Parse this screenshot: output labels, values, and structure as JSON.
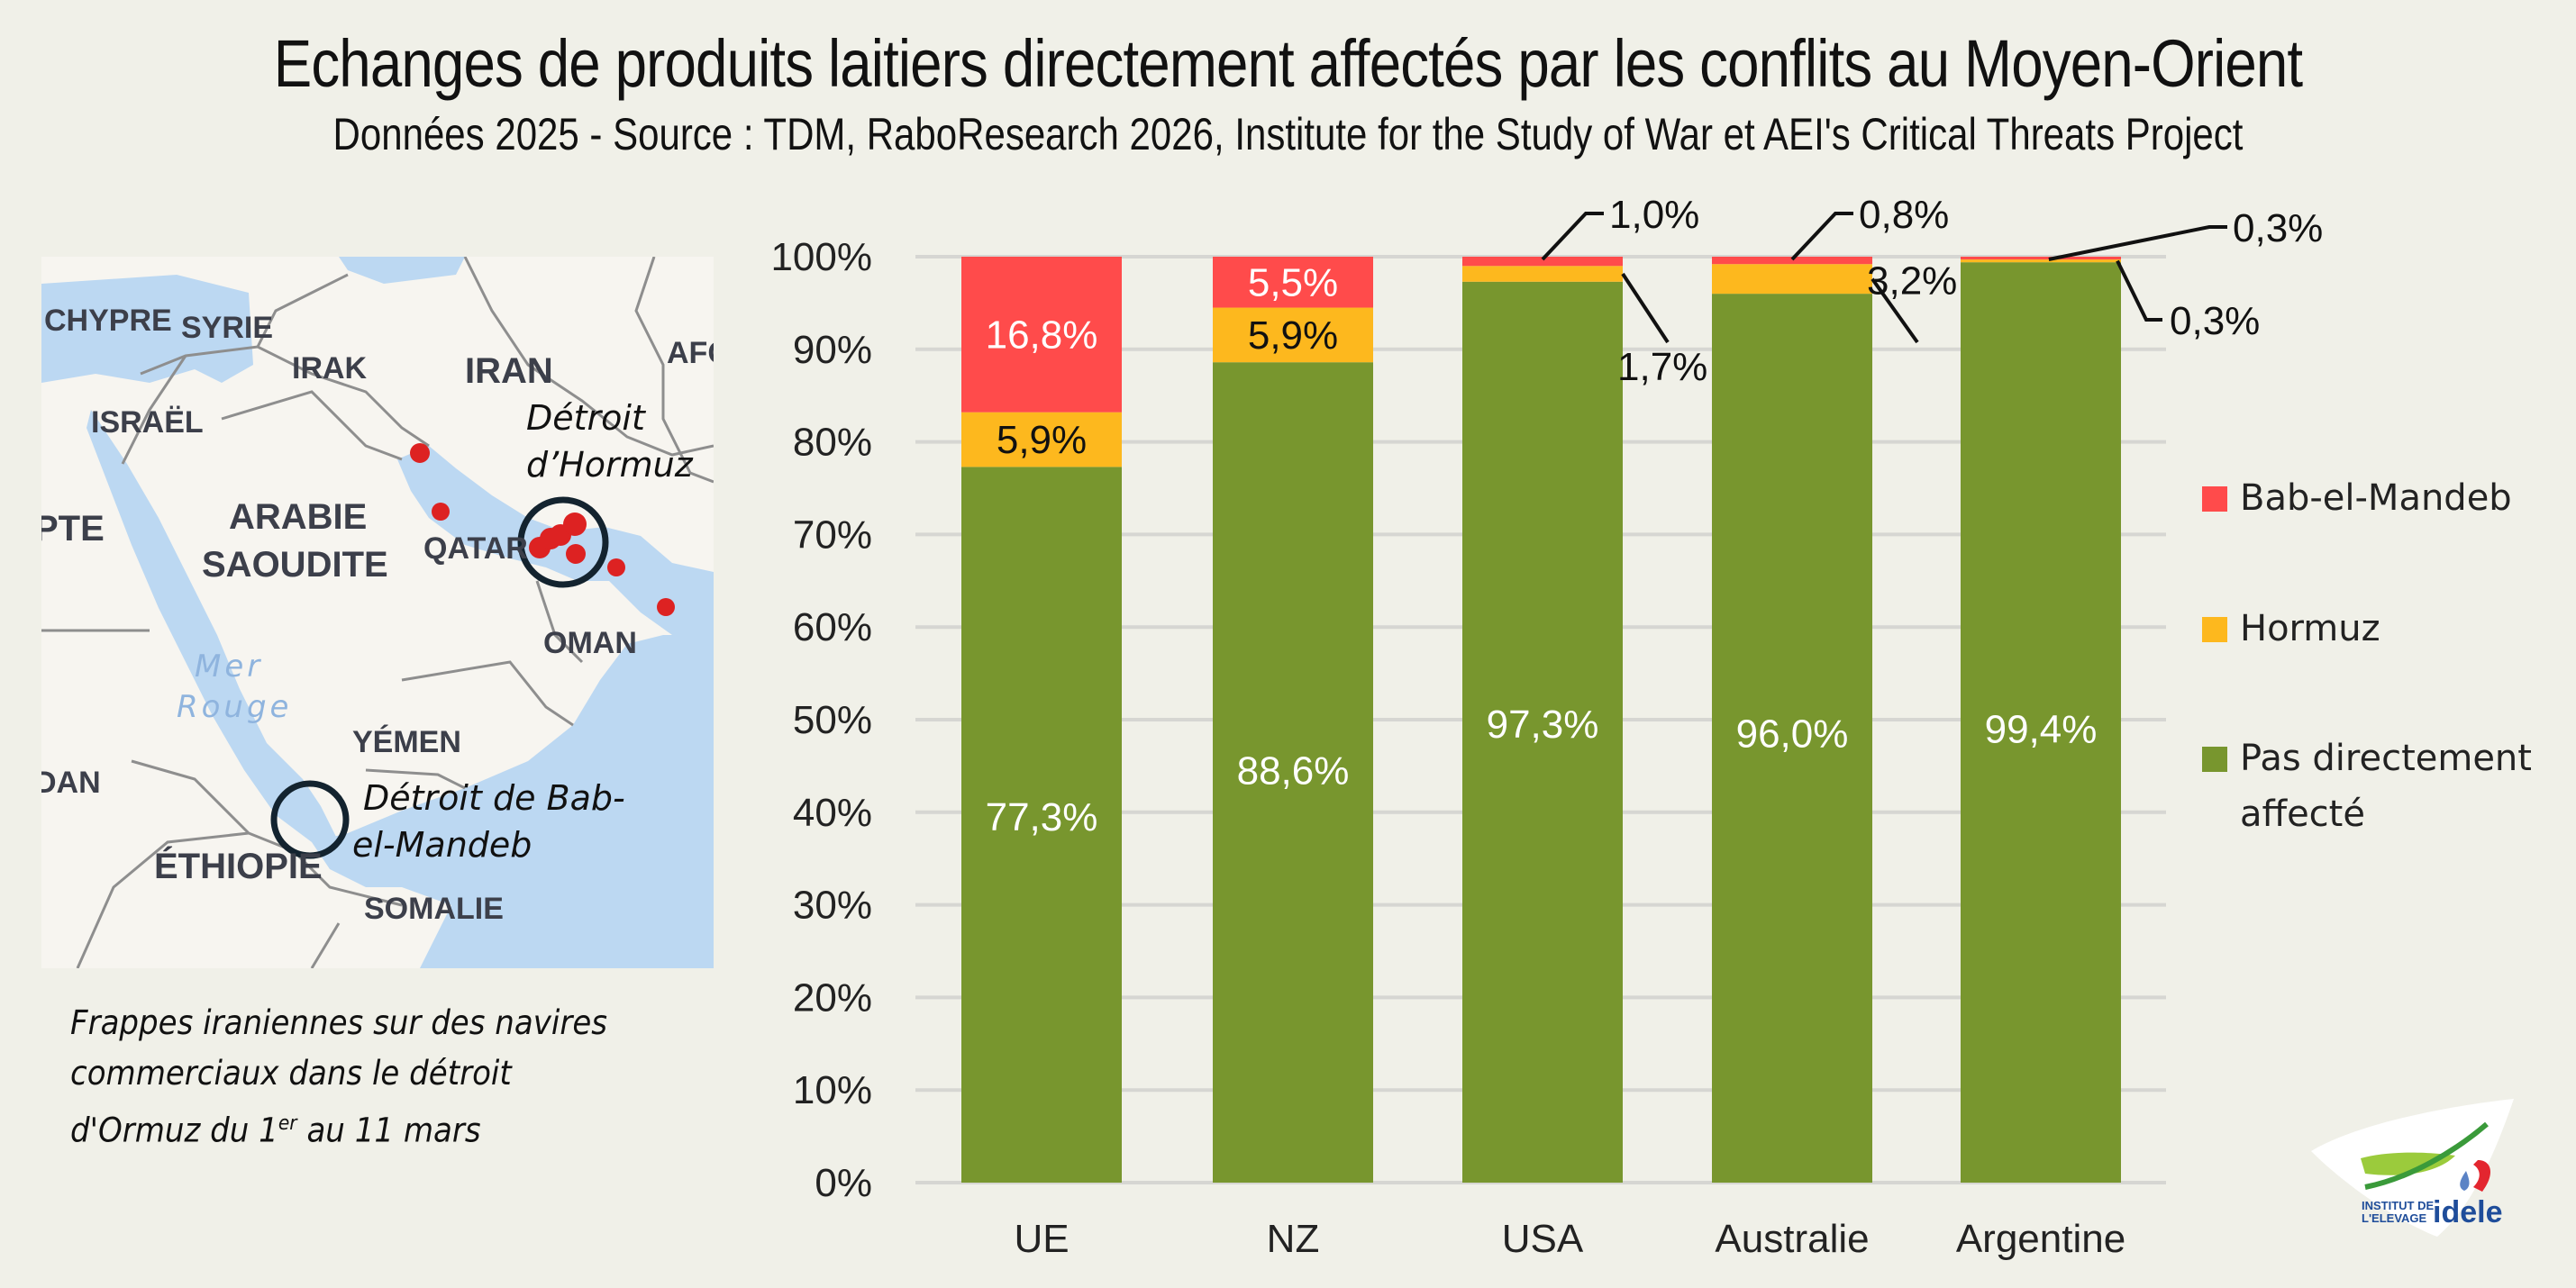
{
  "header": {
    "title": "Echanges de produits laitiers directement affectés par les conflits au Moyen-Orient",
    "subtitle": "Données 2025  - Source : TDM, RaboResearch 2026, Institute for the Study of War et AEI's Critical Threats Project"
  },
  "map": {
    "country_labels": [
      "CHYPRE",
      "SYRIE",
      "IRAK",
      "IRAN",
      "AFG",
      "ISRAËL",
      "ARABIE",
      "SAOUDITE",
      "QATAR",
      "PTE",
      "OMAN",
      "YÉMEN",
      "DAN",
      "ÉTHIOPIE",
      "SOMALIE"
    ],
    "sea_labels": [
      "Mer",
      "Rouge"
    ],
    "annotations": {
      "hormuz_line1": "Détroit",
      "hormuz_line2": "d’Hormuz",
      "bab_line1": "Détroit de Bab-",
      "bab_line2": "el-Mandeb"
    },
    "colors": {
      "land": "#f7f5f0",
      "water": "#bcd8f2",
      "strike": "#dd2222",
      "circle": "#13232f"
    }
  },
  "caption": {
    "line1": "Frappes iraniennes sur des navires",
    "line2": "commerciaux dans le détroit",
    "line3_prefix": "d'Ormuz du 1",
    "line3_sup": "er",
    "line3_suffix": " au 11 mars"
  },
  "legend": [
    {
      "label": "Bab-el-Mandeb",
      "color": "#ff4b4b"
    },
    {
      "label": "Hormuz",
      "color": "#fdb81e"
    },
    {
      "label": "Pas directement",
      "label2": "affecté",
      "color": "#78962e"
    }
  ],
  "logo": {
    "line1": "INSTITUT DE",
    "line2": "L'ELEVAGE",
    "brand": "idele"
  },
  "chart_data": {
    "type": "bar",
    "stacked": true,
    "title": "Echanges de produits laitiers directement affectés par les conflits au Moyen-Orient",
    "xlabel": "",
    "ylabel": "",
    "ylim": [
      0,
      100
    ],
    "yticks": [
      0,
      10,
      20,
      30,
      40,
      50,
      60,
      70,
      80,
      90,
      100
    ],
    "ytick_labels": [
      "0%",
      "10%",
      "20%",
      "30%",
      "40%",
      "50%",
      "60%",
      "70%",
      "80%",
      "90%",
      "100%"
    ],
    "grid": true,
    "legend_position": "right",
    "categories": [
      "UE",
      "NZ",
      "USA",
      "Australie",
      "Argentine"
    ],
    "series": [
      {
        "name": "Pas directement affecté",
        "color": "#78962e",
        "label_color": "#ffffff",
        "values": [
          77.3,
          88.6,
          97.3,
          96.0,
          99.4
        ],
        "labels": [
          "77,3%",
          "88,6%",
          "97,3%",
          "96,0%",
          "99,4%"
        ]
      },
      {
        "name": "Hormuz",
        "color": "#fdb81e",
        "label_color": "#111111",
        "values": [
          5.9,
          5.9,
          1.7,
          3.2,
          0.3
        ],
        "labels": [
          "5,9%",
          "5,9%",
          "1,7%",
          "3,2%",
          "0,3%"
        ]
      },
      {
        "name": "Bab-el-Mandeb",
        "color": "#ff4b4b",
        "label_color": "#ffffff",
        "values": [
          16.8,
          5.5,
          1.0,
          0.8,
          0.3
        ],
        "labels": [
          "16,8%",
          "5,5%",
          "1,0%",
          "0,8%",
          "0,3%"
        ]
      }
    ]
  }
}
